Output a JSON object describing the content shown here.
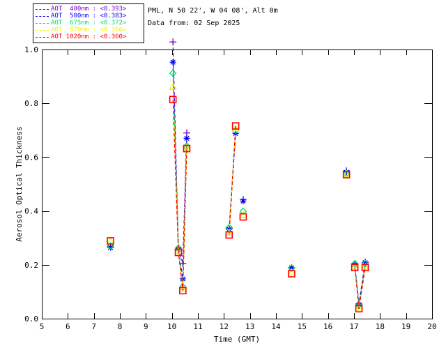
{
  "header": {
    "line1": "PML, N 50 22', W 04 08', Alt 0m",
    "line2": "Data from: 02 Sep 2025"
  },
  "legend": {
    "items": [
      {
        "label": "AOT  400nm : <0.393>",
        "color": "#7300BF"
      },
      {
        "label": "AOT  500nm : <0.383>",
        "color": "#0000FF"
      },
      {
        "label": "AOT  675nm : <0.372>",
        "color": "#00DC78"
      },
      {
        "label": "AOT  870nm : <0.366>",
        "color": "#F0F000"
      },
      {
        "label": "AOT 1020nm : <0.360>",
        "color": "#FF0000"
      }
    ]
  },
  "chart_data": {
    "type": "line",
    "title": "",
    "xlabel": "Time (GMT)",
    "ylabel": "Aerosol Optical Thickness",
    "xlim": [
      5,
      20
    ],
    "ylim": [
      0.0,
      1.0
    ],
    "xticks": [
      5,
      6,
      7,
      8,
      9,
      10,
      11,
      12,
      13,
      14,
      15,
      16,
      17,
      18,
      19,
      20
    ],
    "yticks": [
      0.0,
      0.2,
      0.4,
      0.6,
      0.8,
      1.0
    ],
    "ytick_labels": [
      "0.0",
      "0.2",
      "0.4",
      "0.6",
      "0.8",
      "1.0"
    ],
    "grid": false,
    "legend_position": "top-left",
    "line_style": "dashed",
    "series": [
      {
        "name": "AOT 400nm",
        "wavelength": "400nm",
        "mean_label": "<0.393>",
        "color": "#7300BF",
        "marker": "plus",
        "groups": [
          [
            [
              7.64,
              0.268
            ]
          ],
          [
            [
              10.04,
              1.028
            ],
            [
              10.25,
              0.262
            ],
            [
              10.42,
              0.205
            ],
            [
              10.57,
              0.69
            ]
          ],
          [
            [
              12.2,
              0.335
            ],
            [
              12.45,
              0.695
            ]
          ],
          [
            [
              12.74,
              0.443
            ]
          ],
          [
            [
              14.6,
              0.19
            ]
          ],
          [
            [
              16.71,
              0.549
            ]
          ],
          [
            [
              17.03,
              0.205
            ],
            [
              17.19,
              0.055
            ],
            [
              17.43,
              0.21
            ]
          ]
        ]
      },
      {
        "name": "AOT 500nm",
        "wavelength": "500nm",
        "mean_label": "<0.383>",
        "color": "#0000FF",
        "marker": "asterisk",
        "groups": [
          [
            [
              7.64,
              0.264
            ]
          ],
          [
            [
              10.04,
              0.953
            ],
            [
              10.25,
              0.259
            ],
            [
              10.42,
              0.148
            ],
            [
              10.57,
              0.67
            ]
          ],
          [
            [
              12.2,
              0.332
            ],
            [
              12.45,
              0.688
            ]
          ],
          [
            [
              12.74,
              0.437
            ]
          ],
          [
            [
              14.6,
              0.189
            ]
          ],
          [
            [
              16.71,
              0.544
            ]
          ],
          [
            [
              17.03,
              0.202
            ],
            [
              17.19,
              0.052
            ],
            [
              17.43,
              0.208
            ]
          ]
        ]
      },
      {
        "name": "AOT 675nm",
        "wavelength": "675nm",
        "mean_label": "<0.372>",
        "color": "#00DC78",
        "marker": "diamond",
        "groups": [
          [
            [
              7.64,
              0.271
            ]
          ],
          [
            [
              10.04,
              0.912
            ],
            [
              10.25,
              0.262
            ],
            [
              10.42,
              0.118
            ],
            [
              10.57,
              0.641
            ]
          ],
          [
            [
              12.2,
              0.339
            ],
            [
              12.45,
              0.7
            ]
          ],
          [
            [
              12.74,
              0.399
            ]
          ],
          [
            [
              14.6,
              0.188
            ]
          ],
          [
            [
              16.71,
              0.539
            ]
          ],
          [
            [
              17.03,
              0.204
            ],
            [
              17.19,
              0.048
            ],
            [
              17.43,
              0.204
            ]
          ]
        ]
      },
      {
        "name": "AOT 870nm",
        "wavelength": "870nm",
        "mean_label": "<0.366>",
        "color": "#F0F000",
        "marker": "triangle",
        "groups": [
          [
            [
              7.64,
              0.288
            ]
          ],
          [
            [
              10.04,
              0.861
            ],
            [
              10.25,
              0.251
            ],
            [
              10.42,
              0.11
            ],
            [
              10.57,
              0.636
            ]
          ],
          [
            [
              12.2,
              0.318
            ],
            [
              12.45,
              0.705
            ]
          ],
          [
            [
              12.74,
              0.386
            ]
          ],
          [
            [
              14.6,
              0.172
            ]
          ],
          [
            [
              16.71,
              0.537
            ]
          ],
          [
            [
              17.03,
              0.192
            ],
            [
              17.19,
              0.041
            ],
            [
              17.43,
              0.193
            ]
          ]
        ]
      },
      {
        "name": "AOT 1020nm",
        "wavelength": "1020nm",
        "mean_label": "<0.360>",
        "color": "#FF0000",
        "marker": "square",
        "groups": [
          [
            [
              7.64,
              0.289
            ]
          ],
          [
            [
              10.04,
              0.814
            ],
            [
              10.25,
              0.246
            ],
            [
              10.42,
              0.104
            ],
            [
              10.57,
              0.632
            ]
          ],
          [
            [
              12.2,
              0.311
            ],
            [
              12.45,
              0.716
            ]
          ],
          [
            [
              12.74,
              0.378
            ]
          ],
          [
            [
              14.6,
              0.167
            ]
          ],
          [
            [
              16.71,
              0.535
            ]
          ],
          [
            [
              17.03,
              0.19
            ],
            [
              17.19,
              0.037
            ],
            [
              17.43,
              0.19
            ]
          ]
        ]
      }
    ]
  }
}
